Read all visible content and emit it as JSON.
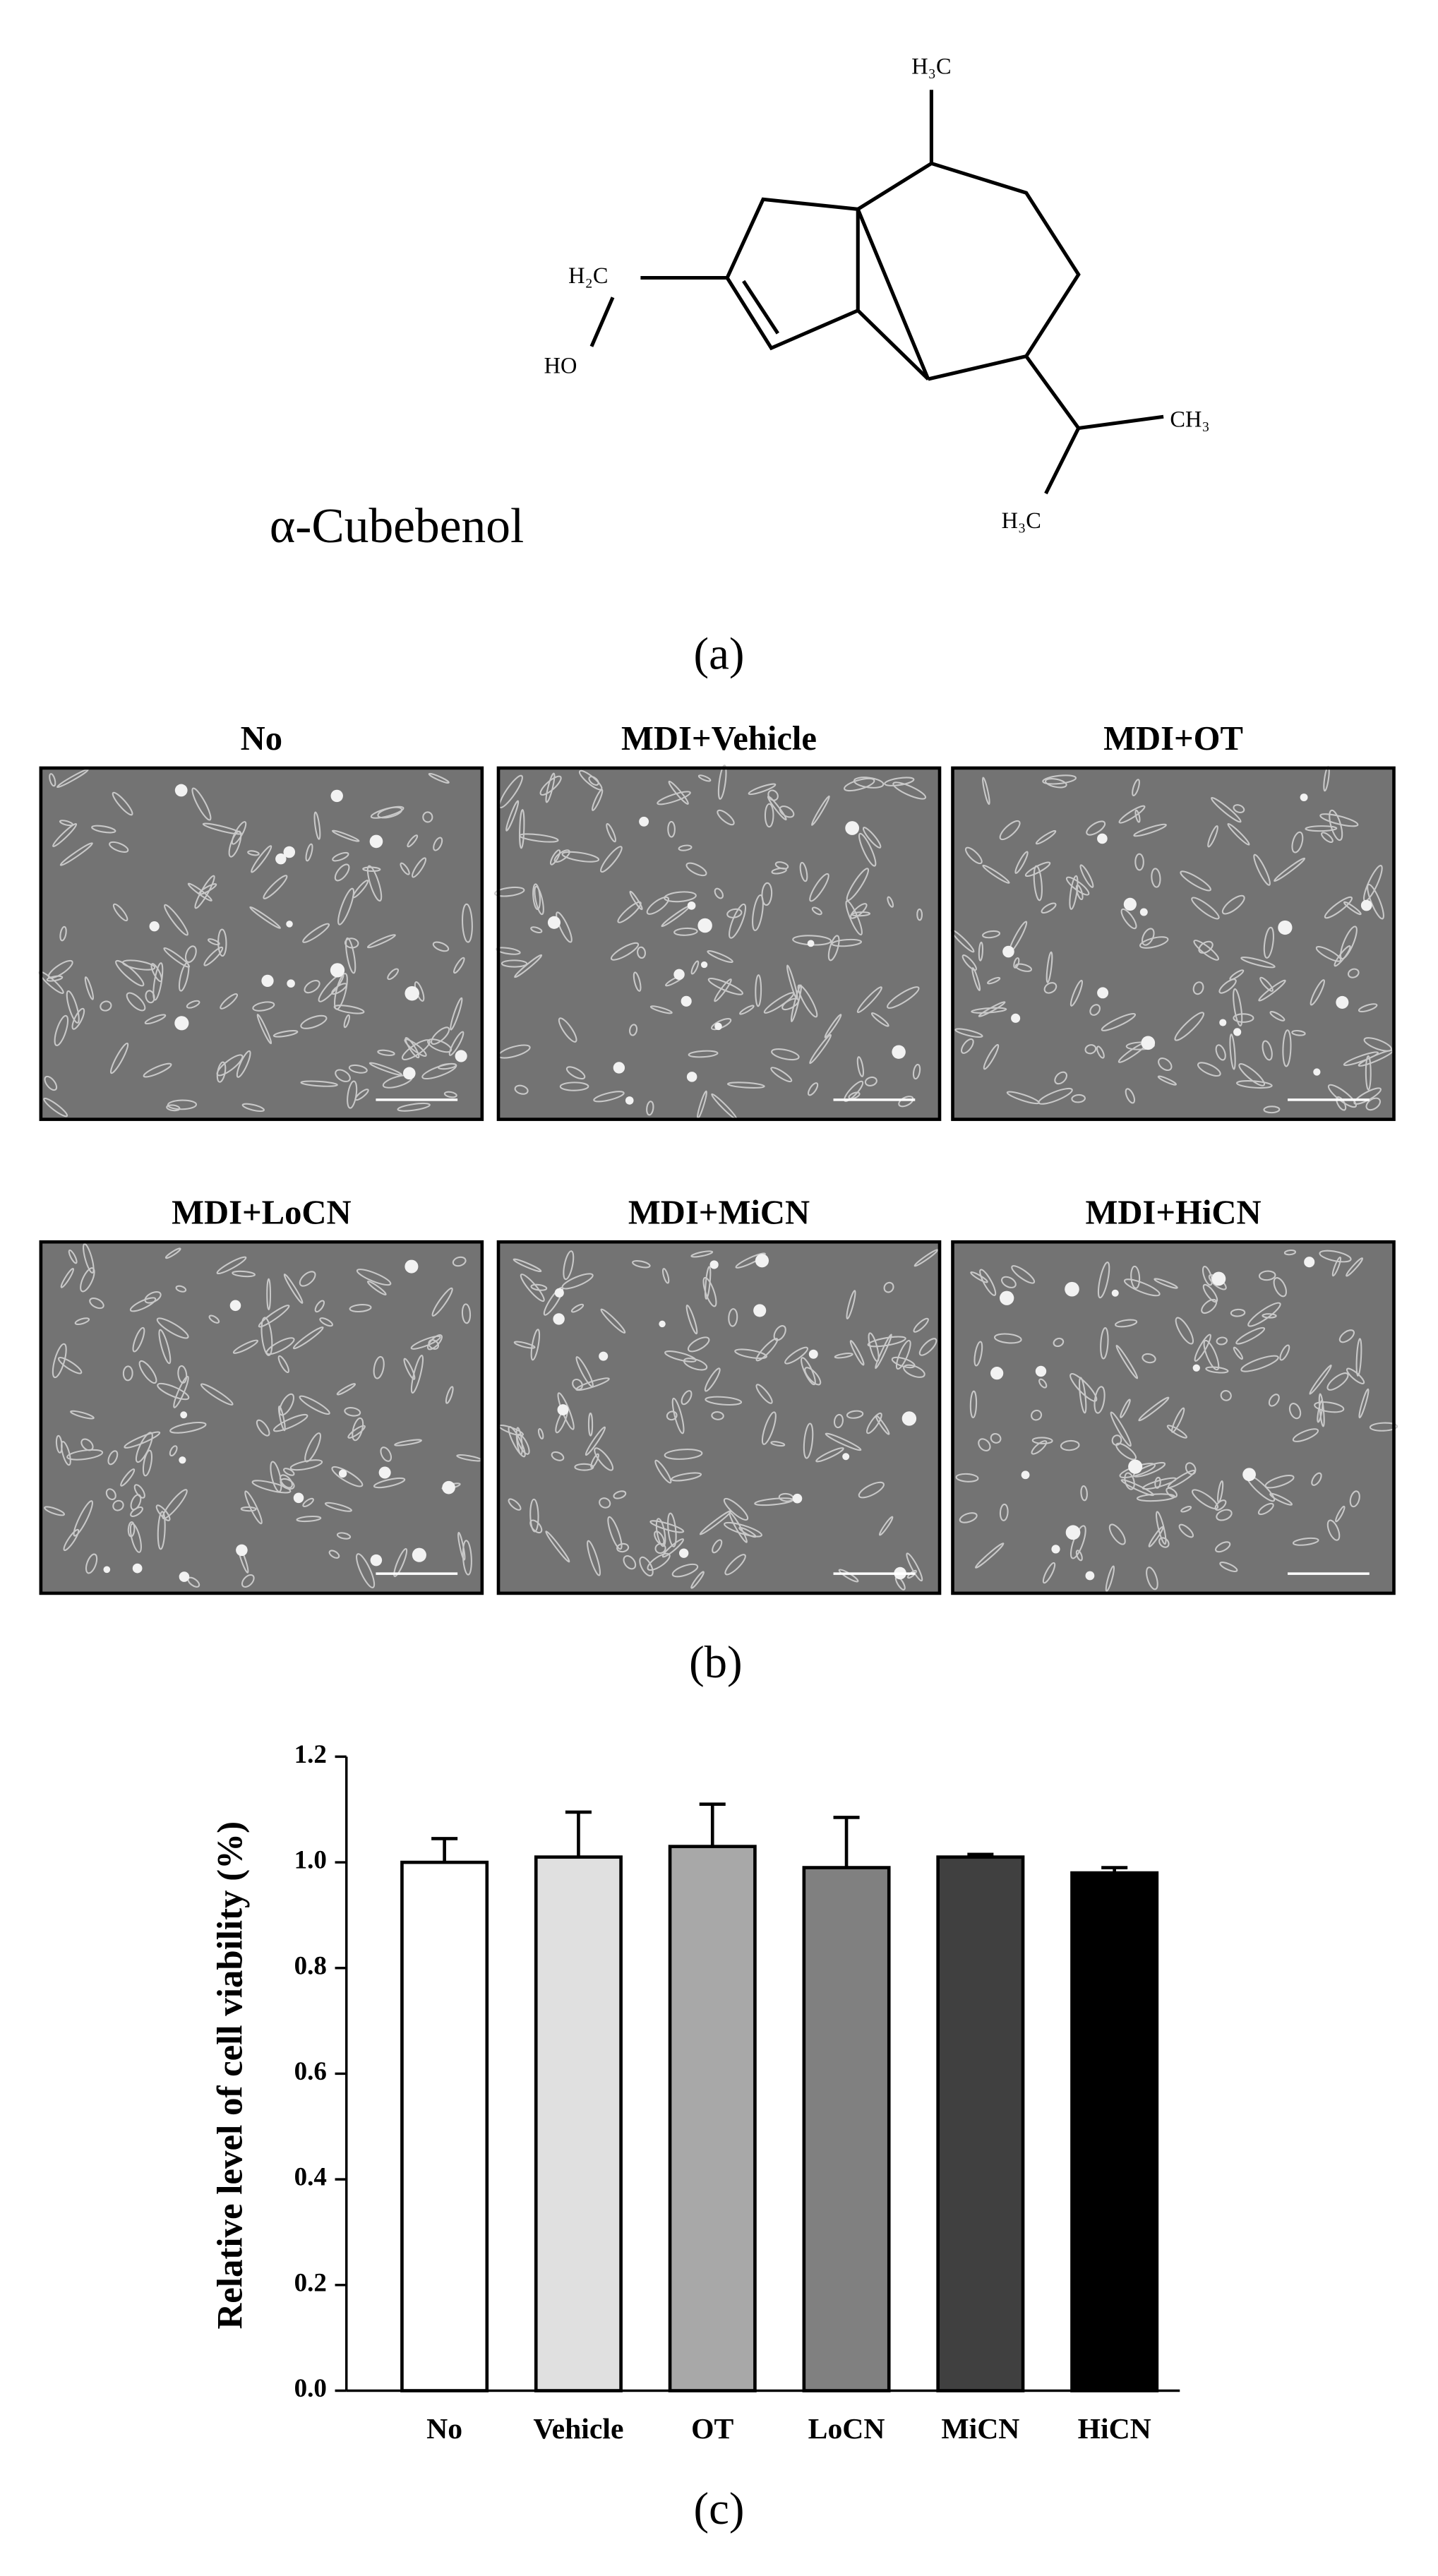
{
  "panel_a": {
    "compound_name": "α-Cubebenol",
    "atoms": [
      "H₃C",
      "H₂C",
      "HO",
      "CH₃",
      "H₃C"
    ],
    "label": "(a)"
  },
  "panel_b": {
    "images": [
      "No",
      "MDI+Vehicle",
      "MDI+OT",
      "MDI+LoCN",
      "MDI+MiCN",
      "MDI+HiCN"
    ],
    "label": "(b)"
  },
  "chart_data": {
    "type": "bar",
    "ylabel": "Relative level of cell viability (%)",
    "categories": [
      "No",
      "Vehicle",
      "OT",
      "LoCN",
      "MiCN",
      "HiCN"
    ],
    "values": [
      1.0,
      1.01,
      1.03,
      0.99,
      1.01,
      0.98
    ],
    "errors": [
      0.045,
      0.085,
      0.08,
      0.095,
      0.005,
      0.01
    ],
    "colors": [
      "#ffffff",
      "#e0e0e0",
      "#a8a8a8",
      "#808080",
      "#404040",
      "#000000"
    ],
    "ylim": [
      0,
      1.2
    ],
    "yticks": [
      {
        "value": 0,
        "label": "0.0"
      },
      {
        "value": 0.2,
        "label": "0.2"
      },
      {
        "value": 0.4,
        "label": "0.4"
      },
      {
        "value": 0.6,
        "label": "0.6"
      },
      {
        "value": 0.8,
        "label": "0.8"
      },
      {
        "value": 1.0,
        "label": "1.0"
      },
      {
        "value": 1.2,
        "label": "1.2"
      }
    ],
    "label": "(c)"
  }
}
